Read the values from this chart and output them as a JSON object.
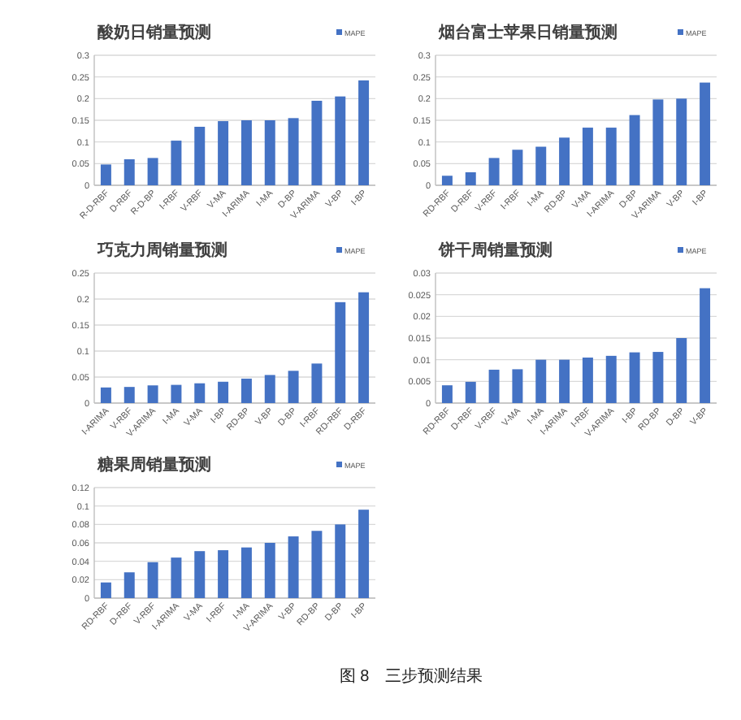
{
  "chart_data": [
    {
      "type": "bar",
      "title": "酸奶日销量预测",
      "categories": [
        "R-D-RBF",
        "D-RBF",
        "R-D-BP",
        "I-RBF",
        "V-RBF",
        "V-MA",
        "I-ARIMA",
        "I-MA",
        "D-BP",
        "V-ARIMA",
        "V-BP",
        "I-BP"
      ],
      "series": [
        {
          "name": "MAPE",
          "color": "#4472c4",
          "values": [
            0.048,
            0.06,
            0.063,
            0.103,
            0.135,
            0.148,
            0.15,
            0.15,
            0.155,
            0.195,
            0.205,
            0.242
          ]
        }
      ],
      "ylim": [
        0,
        0.3
      ],
      "yticks": [
        0,
        0.05,
        0.1,
        0.15,
        0.2,
        0.25,
        0.3
      ],
      "grid": "y",
      "legend": "top right"
    },
    {
      "type": "bar",
      "title": "烟台富士苹果日销量预测",
      "categories": [
        "RD-RBF",
        "D-RBF",
        "V-RBF",
        "I-RBF",
        "I-MA",
        "RD-BP",
        "V-MA",
        "I-ARIMA",
        "D-BP",
        "V-ARIMA",
        "V-BP",
        "I-BP"
      ],
      "series": [
        {
          "name": "MAPE",
          "color": "#4472c4",
          "values": [
            0.022,
            0.03,
            0.063,
            0.082,
            0.089,
            0.11,
            0.133,
            0.133,
            0.162,
            0.198,
            0.2,
            0.237
          ]
        }
      ],
      "ylim": [
        0,
        0.3
      ],
      "yticks": [
        0,
        0.05,
        0.1,
        0.15,
        0.2,
        0.25,
        0.3
      ],
      "grid": "y",
      "legend": "top right"
    },
    {
      "type": "bar",
      "title": "巧克力周销量预测",
      "categories": [
        "I-ARIMA",
        "V-RBF",
        "V-ARIMA",
        "I-MA",
        "V-MA",
        "I-BP",
        "RD-BP",
        "V-BP",
        "D-BP",
        "I-RBF",
        "RD-RBF",
        "D-RBF"
      ],
      "series": [
        {
          "name": "MAPE",
          "color": "#4472c4",
          "values": [
            0.03,
            0.031,
            0.034,
            0.035,
            0.038,
            0.041,
            0.047,
            0.054,
            0.062,
            0.076,
            0.194,
            0.213
          ]
        }
      ],
      "ylim": [
        0,
        0.25
      ],
      "yticks": [
        0,
        0.05,
        0.1,
        0.15,
        0.2,
        0.25
      ],
      "grid": "y",
      "legend": "top right"
    },
    {
      "type": "bar",
      "title": "饼干周销量预测",
      "categories": [
        "RD-RBF",
        "D-RBF",
        "V-RBF",
        "V-MA",
        "I-MA",
        "I-ARIMA",
        "I-RBF",
        "V-ARIMA",
        "I-BP",
        "RD-BP",
        "D-BP",
        "V-BP"
      ],
      "series": [
        {
          "name": "MAPE",
          "color": "#4472c4",
          "values": [
            0.0041,
            0.0049,
            0.0077,
            0.0078,
            0.01,
            0.01,
            0.0105,
            0.0109,
            0.0117,
            0.0118,
            0.015,
            0.0265
          ]
        }
      ],
      "ylim": [
        0,
        0.03
      ],
      "yticks": [
        0,
        0.005,
        0.01,
        0.015,
        0.02,
        0.025,
        0.03
      ],
      "grid": "y",
      "legend": "top right"
    },
    {
      "type": "bar",
      "title": "糖果周销量预测",
      "categories": [
        "RD-RBF",
        "D-RBF",
        "V-RBF",
        "I-ARIMA",
        "V-MA",
        "I-RBF",
        "I-MA",
        "V-ARIMA",
        "V-BP",
        "RD-BP",
        "D-BP",
        "I-BP"
      ],
      "series": [
        {
          "name": "MAPE",
          "color": "#4472c4",
          "values": [
            0.017,
            0.028,
            0.039,
            0.044,
            0.051,
            0.052,
            0.055,
            0.06,
            0.067,
            0.073,
            0.08,
            0.096
          ]
        }
      ],
      "ylim": [
        0,
        0.12
      ],
      "yticks": [
        0,
        0.02,
        0.04,
        0.06,
        0.08,
        0.1,
        0.12
      ],
      "grid": "y",
      "legend": "top right",
      "annotations": [
        "图 8　三步预测结果"
      ]
    }
  ]
}
